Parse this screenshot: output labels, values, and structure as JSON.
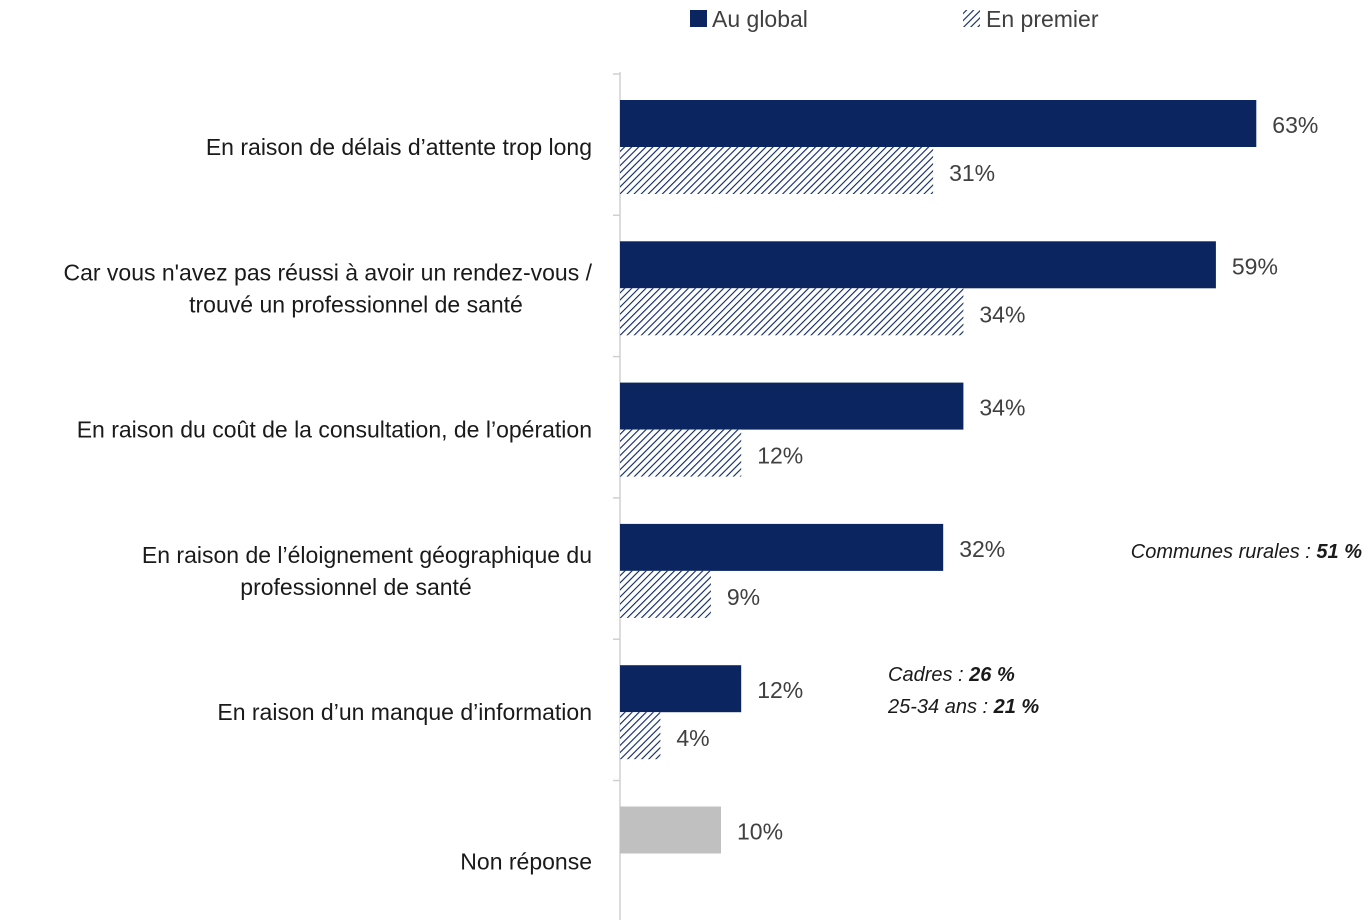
{
  "chart_data": {
    "type": "bar",
    "orientation": "horizontal",
    "categories": [
      [
        "En raison de délais d’attente trop long"
      ],
      [
        "Car vous n'avez pas réussi à avoir un rendez-vous /",
        "trouvé un professionnel de santé"
      ],
      [
        "En raison du coût de la consultation, de l’opération"
      ],
      [
        "En raison de l’éloignement géographique du",
        "professionnel de santé"
      ],
      [
        "En raison d’un manque d’information"
      ],
      [
        "Non réponse"
      ]
    ],
    "series": [
      {
        "name": "Au global",
        "values": [
          63,
          59,
          34,
          32,
          12,
          10
        ],
        "value_labels": [
          "63%",
          "59%",
          "34%",
          "32%",
          "12%",
          "10%"
        ]
      },
      {
        "name": "En premier",
        "values": [
          31,
          34,
          12,
          9,
          4,
          null
        ],
        "value_labels": [
          "31%",
          "34%",
          "12%",
          "9%",
          "4%",
          ""
        ]
      }
    ],
    "xlim": [
      0,
      100
    ],
    "legend_position": "top-center",
    "annotations": [
      {
        "category_index": 3,
        "lines": [
          {
            "text": "Communes rurales : ",
            "bold": "51 %"
          }
        ]
      },
      {
        "category_index": 4,
        "lines": [
          {
            "text": "Cadres : ",
            "bold": "26 %"
          },
          {
            "text": "25-34 ans : ",
            "bold": "21 %"
          }
        ]
      }
    ],
    "colors": {
      "global": "#0b2561",
      "premier": "#0b2561",
      "non_reponse": "#c0c0c0",
      "axis": "#d0d0d0"
    }
  }
}
